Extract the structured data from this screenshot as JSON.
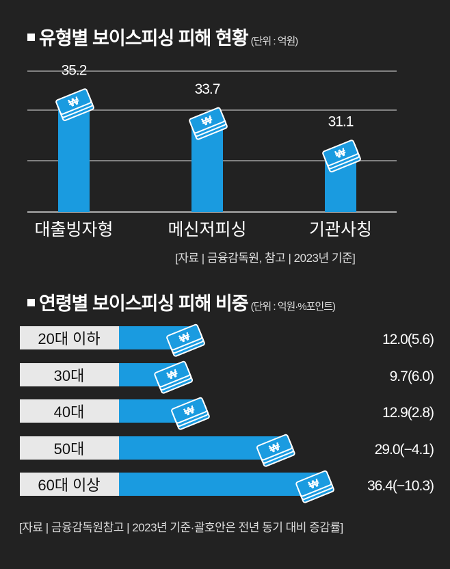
{
  "colors": {
    "background": "#222222",
    "bar": "#1a9be0",
    "label_box": "#e8e8e8",
    "gridline": "#cccccc"
  },
  "icon": "won-banknote-stack-icon",
  "chart_data": [
    {
      "type": "bar",
      "title": "유형별 보이스피싱 피해 현황",
      "unit": "(단위 : 억원)",
      "categories": [
        "대출빙자형",
        "메신저피싱",
        "기관사칭"
      ],
      "values": [
        35.2,
        33.7,
        31.1
      ],
      "value_labels": [
        "35.2",
        "33.7",
        "31.1"
      ],
      "source": "[자료 | 금융감독원, 참고 | 2023년 기준]",
      "grid": true
    },
    {
      "type": "bar",
      "orientation": "horizontal",
      "title": "연령별 보이스피싱 피해 비중",
      "unit": "(단위 : 억원·%포인트)",
      "categories": [
        "20대 이하",
        "30대",
        "40대",
        "50대",
        "60대 이상"
      ],
      "values": [
        12.0,
        9.7,
        12.9,
        29.0,
        36.4
      ],
      "change": [
        5.6,
        6.0,
        2.8,
        -4.1,
        -10.3
      ],
      "value_labels": [
        "12.0(5.6)",
        "9.7(6.0)",
        "12.9(2.8)",
        "29.0(−4.1)",
        "36.4(−10.3)"
      ],
      "source": "[자료 | 금융감독원참고 | 2023년 기준·괄호안은 전년 동기 대비 증감률]"
    }
  ]
}
